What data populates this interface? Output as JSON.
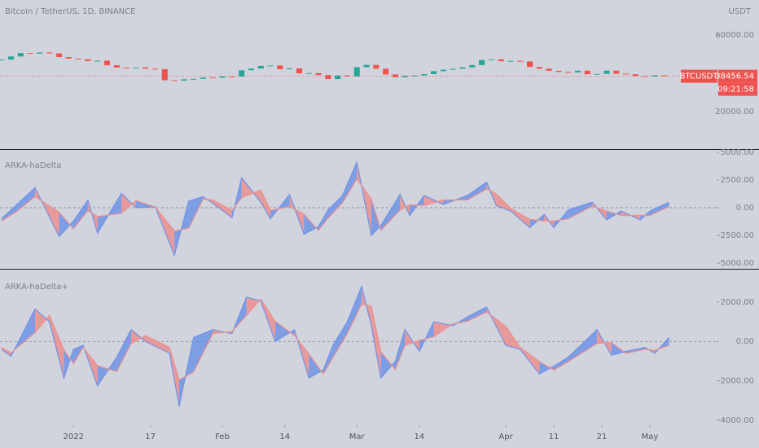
{
  "chart_data": [
    {
      "type": "candlestick",
      "title": "Bitcoin / TetherUS, 1D, BINANCE",
      "unit": "USDT",
      "symbol": "BTCUSDT",
      "last_price": 38456.54,
      "countdown": "09:21:58",
      "colors": {
        "up": "#26a69a",
        "down": "#ef5350"
      },
      "x": [
        -15,
        -13,
        -11,
        -9,
        -7,
        -5,
        -3,
        -1,
        1,
        3,
        5,
        7,
        9,
        11,
        13,
        15,
        17,
        19,
        21,
        23,
        25,
        27,
        29,
        31,
        33,
        35,
        37,
        39,
        41,
        43,
        45,
        47,
        49,
        51,
        53,
        55,
        57,
        59,
        61,
        63,
        65,
        67,
        69,
        71,
        73,
        75,
        77,
        79,
        81,
        83,
        85,
        87,
        89,
        91,
        93,
        95,
        97,
        99,
        101,
        103,
        105,
        107,
        109,
        111,
        113,
        115,
        117,
        119,
        121,
        123
      ],
      "close": [
        47200,
        48800,
        50600,
        50300,
        50900,
        50400,
        48500,
        47700,
        47300,
        46400,
        46600,
        44200,
        43000,
        42800,
        43100,
        42400,
        42200,
        36400,
        36200,
        36900,
        37100,
        37800,
        37700,
        38400,
        38300,
        41600,
        42500,
        43900,
        44100,
        42100,
        42600,
        40000,
        40100,
        39100,
        37000,
        38900,
        38400,
        43200,
        44400,
        42400,
        39400,
        38000,
        38800,
        38900,
        39600,
        41100,
        41900,
        42400,
        43100,
        44300,
        46900,
        47300,
        46300,
        46500,
        46200,
        43300,
        42400,
        41300,
        40700,
        40500,
        41400,
        39500,
        39700,
        41400,
        39800,
        39500,
        38600,
        38400,
        39000,
        38700
      ],
      "ylim": [
        427,
        78300
      ],
      "yticks": [
        {
          "value": 60000,
          "label": "60000.00"
        },
        {
          "value": 20000,
          "label": "20000.00"
        }
      ]
    },
    {
      "type": "line",
      "title": "ARKA-haDelta",
      "zero_line": true,
      "x": [
        -15,
        -12,
        -8,
        -3,
        0,
        3,
        5,
        10,
        13,
        17,
        21,
        24,
        27,
        29,
        33,
        35,
        39,
        41,
        45,
        48,
        51,
        53,
        56,
        59,
        62,
        64,
        68,
        70,
        73,
        77,
        82,
        86,
        88,
        91,
        95,
        98,
        100,
        103,
        108,
        111,
        114,
        118,
        120,
        124
      ],
      "series": [
        {
          "color": "#6f93e6",
          "values": [
            -1000,
            200,
            1800,
            -2600,
            -1200,
            700,
            -2300,
            1300,
            0,
            100,
            -4300,
            600,
            1000,
            400,
            -900,
            2700,
            500,
            -1000,
            1200,
            -2400,
            -1700,
            -200,
            1100,
            4100,
            -2500,
            -1600,
            1200,
            -700,
            1100,
            300,
            1100,
            2300,
            200,
            -300,
            -1800,
            -600,
            -1800,
            -200,
            500,
            -1100,
            -300,
            -1100,
            -300,
            500
          ]
        },
        {
          "color": "#ec8f8f",
          "values": [
            -1200,
            -400,
            1000,
            -400,
            -1900,
            -250,
            -800,
            -500,
            650,
            50,
            -2100,
            -1850,
            800,
            700,
            -250,
            900,
            1600,
            -250,
            100,
            -600,
            -2050,
            -950,
            450,
            2600,
            800,
            -2050,
            -200,
            250,
            200,
            700,
            700,
            1700,
            1250,
            -50,
            -1050,
            -1200,
            -1200,
            -1000,
            150,
            -300,
            -700,
            -700,
            -700,
            100
          ]
        }
      ],
      "ylim": [
        -5515,
        5220
      ],
      "yticks": [
        {
          "value": 5000,
          "label": "5000.00"
        },
        {
          "value": 2500,
          "label": "2500.00"
        },
        {
          "value": 0,
          "label": "0.00"
        },
        {
          "value": -2500,
          "label": "-2500.00"
        },
        {
          "value": -5000,
          "label": "-5000.00"
        }
      ]
    },
    {
      "type": "line",
      "title": "ARKA-haDelta+",
      "zero_line": true,
      "x": [
        -15,
        -13,
        -8,
        -5,
        -2,
        0,
        2,
        5,
        9,
        12,
        15,
        20,
        22,
        25,
        29,
        33,
        36,
        39,
        42,
        46,
        49,
        52,
        54,
        57,
        60,
        62,
        64,
        67,
        69,
        72,
        75,
        79,
        82,
        86,
        90,
        93,
        97,
        100,
        103,
        109,
        112,
        115,
        119,
        121,
        124
      ],
      "series": [
        {
          "color": "#6f93e6",
          "values": [
            -400,
            -750,
            1650,
            1000,
            -1850,
            -400,
            -200,
            -2250,
            -800,
            600,
            0,
            -600,
            -3300,
            200,
            600,
            400,
            2250,
            2050,
            0,
            600,
            -1850,
            -1450,
            -200,
            1000,
            2800,
            800,
            -1850,
            -1000,
            600,
            -500,
            1000,
            800,
            1250,
            1750,
            -200,
            -400,
            -1650,
            -1250,
            -800,
            600,
            -700,
            -500,
            -300,
            -600,
            200
          ]
        },
        {
          "color": "#ec8f8f",
          "values": [
            -300,
            -575,
            450,
            1325,
            -425,
            -1125,
            -300,
            -1225,
            -1525,
            -100,
            300,
            -300,
            -1950,
            -1550,
            400,
            500,
            1325,
            2150,
            1025,
            300,
            -625,
            -1650,
            -825,
            400,
            1900,
            1800,
            -525,
            -1425,
            -200,
            50,
            250,
            900,
            1025,
            1500,
            775,
            -300,
            -1025,
            -1450,
            -1025,
            -100,
            -50,
            -600,
            -400,
            -450,
            -200
          ]
        }
      ],
      "ylim": [
        -4250,
        3650
      ],
      "yticks": [
        {
          "value": 2000,
          "label": "2000.00"
        },
        {
          "value": 0,
          "label": "0.00"
        },
        {
          "value": -2000,
          "label": "-2000.00"
        },
        {
          "value": -4000,
          "label": "-4000.00"
        }
      ],
      "xlim": [
        -15.3,
        133.9
      ],
      "xticks": [
        {
          "value": 0,
          "label": "2022"
        },
        {
          "value": 16,
          "label": "17"
        },
        {
          "value": 31,
          "label": "Feb"
        },
        {
          "value": 44,
          "label": "14"
        },
        {
          "value": 59,
          "label": "Mar"
        },
        {
          "value": 72,
          "label": "14"
        },
        {
          "value": 90,
          "label": "Apr"
        },
        {
          "value": 100,
          "label": "11"
        },
        {
          "value": 110,
          "label": "21"
        },
        {
          "value": 120,
          "label": "May"
        }
      ]
    }
  ]
}
